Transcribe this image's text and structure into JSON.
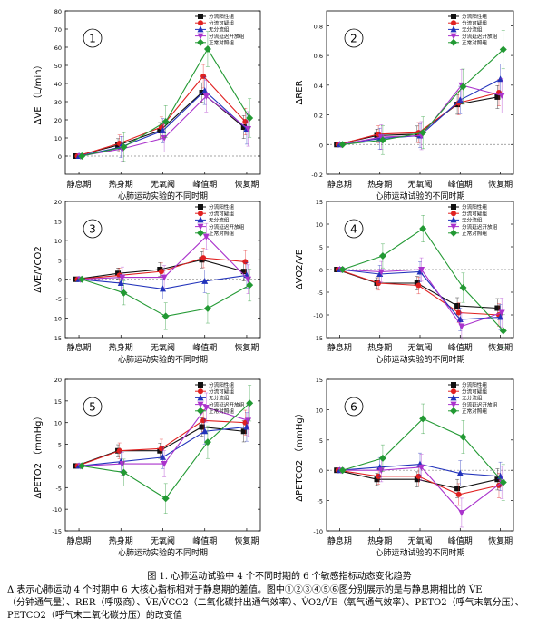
{
  "colors": {
    "series": [
      "#111111",
      "#e02020",
      "#2233bb",
      "#aa33cc",
      "#229933"
    ],
    "zero_line": "#888888"
  },
  "chart_data": [
    {
      "type": "line",
      "number": "1",
      "categories": [
        "静息期",
        "热身期",
        "无氧阈",
        "峰值期",
        "恢复期"
      ],
      "xlabel": "心肺运动实验的不同时期",
      "ylabel": "ΔVE （L/min）",
      "ylim": [
        -10,
        80
      ],
      "yticks": [
        0,
        10,
        20,
        30,
        40,
        50,
        60,
        70,
        80
      ],
      "legend_position": "top-right",
      "series": [
        {
          "name": "分流阳性组",
          "values": [
            0,
            6,
            14,
            35,
            16
          ]
        },
        {
          "name": "分流可疑组",
          "values": [
            0,
            7,
            16,
            44,
            19
          ]
        },
        {
          "name": "无分流组",
          "values": [
            0,
            5,
            14,
            36,
            15
          ]
        },
        {
          "name": "分流延迟开放组",
          "values": [
            0,
            4,
            10,
            33,
            15
          ]
        },
        {
          "name": "正常对照组",
          "values": [
            0,
            5,
            19,
            59,
            21
          ]
        }
      ]
    },
    {
      "type": "line",
      "number": "2",
      "categories": [
        "静息期",
        "热身期",
        "无氧阈",
        "峰值期",
        "恢复期"
      ],
      "xlabel": "心肺运动试验的不同时期",
      "ylabel": "ΔRER",
      "ylim": [
        -0.2,
        0.9
      ],
      "yticks": [
        -0.2,
        0.0,
        0.2,
        0.4,
        0.6,
        0.8
      ],
      "legend_position": "top-right",
      "series": [
        {
          "name": "分流阳性组",
          "values": [
            0,
            0.06,
            0.07,
            0.27,
            0.32
          ]
        },
        {
          "name": "分流可疑组",
          "values": [
            0,
            0.07,
            0.08,
            0.28,
            0.35
          ]
        },
        {
          "name": "无分流组",
          "values": [
            0,
            0.04,
            0.06,
            0.3,
            0.44
          ]
        },
        {
          "name": "分流延迟开放组",
          "values": [
            0,
            0.05,
            0.06,
            0.4,
            0.33
          ]
        },
        {
          "name": "正常对照组",
          "values": [
            0,
            0.03,
            0.08,
            0.39,
            0.64
          ]
        }
      ]
    },
    {
      "type": "line",
      "number": "3",
      "categories": [
        "静息期",
        "热身期",
        "无氧阈",
        "峰值期",
        "恢复期"
      ],
      "xlabel": "心肺运动实验的不同时期",
      "ylabel": "ΔVE/VCO2",
      "ylim": [
        -15,
        20
      ],
      "yticks": [
        -15,
        -10,
        -5,
        0,
        5,
        10,
        15,
        20
      ],
      "legend_position": "top-right",
      "series": [
        {
          "name": "分流阳性组",
          "values": [
            0,
            1.5,
            2.5,
            5,
            2
          ]
        },
        {
          "name": "分流可疑组",
          "values": [
            0,
            1,
            2,
            5.5,
            4.5
          ]
        },
        {
          "name": "无分流组",
          "values": [
            0,
            -1,
            -2.5,
            -0.5,
            1
          ]
        },
        {
          "name": "分流延迟开放组",
          "values": [
            0,
            0.5,
            0.5,
            11,
            0
          ]
        },
        {
          "name": "正常对照组",
          "values": [
            0,
            -3.5,
            -9.5,
            -7.5,
            -1.5
          ]
        }
      ]
    },
    {
      "type": "line",
      "number": "4",
      "categories": [
        "静息期",
        "热身期",
        "无氧阈",
        "峰值期",
        "恢复期"
      ],
      "xlabel": "心肺运动实验的不同时期",
      "ylabel": "ΔVO2/VE",
      "ylim": [
        -15,
        15
      ],
      "yticks": [
        -15,
        -10,
        -5,
        0,
        5,
        10,
        15
      ],
      "legend_position": "top-right",
      "series": [
        {
          "name": "分流阳性组",
          "values": [
            0,
            -3,
            -3,
            -8,
            -8.5
          ]
        },
        {
          "name": "分流可疑组",
          "values": [
            0,
            -3,
            -3.5,
            -9.5,
            -10
          ]
        },
        {
          "name": "无分流组",
          "values": [
            0,
            -1,
            -0.5,
            -11,
            -10.5
          ]
        },
        {
          "name": "分流延迟开放组",
          "values": [
            0,
            -0.5,
            0,
            -12.5,
            -9.5
          ]
        },
        {
          "name": "正常对照组",
          "values": [
            0,
            3,
            9,
            -4,
            -13.5
          ]
        }
      ]
    },
    {
      "type": "line",
      "number": "5",
      "categories": [
        "静息期",
        "热身期",
        "无氧阈",
        "峰值期",
        "恢复期"
      ],
      "xlabel": "心肺运动实验的不同时期",
      "ylabel": "ΔPETO2 （mmHg）",
      "ylim": [
        -15,
        20
      ],
      "yticks": [
        -15,
        -10,
        -5,
        0,
        5,
        10,
        15,
        20
      ],
      "legend_position": "top-right",
      "series": [
        {
          "name": "分流阳性组",
          "values": [
            0,
            3.5,
            3.5,
            9,
            8
          ]
        },
        {
          "name": "分流可疑组",
          "values": [
            0,
            3.5,
            4,
            10.5,
            10
          ]
        },
        {
          "name": "无分流组",
          "values": [
            0,
            1,
            2,
            8,
            9
          ]
        },
        {
          "name": "分流延迟开放组",
          "values": [
            0,
            0.5,
            0.5,
            13.5,
            10.5
          ]
        },
        {
          "name": "正常对照组",
          "values": [
            0,
            -1.5,
            -7.5,
            5.5,
            14.5
          ]
        }
      ]
    },
    {
      "type": "line",
      "number": "6",
      "categories": [
        "静息期",
        "热身期",
        "无氧阈",
        "峰值期",
        "恢复期"
      ],
      "xlabel": "心肺运动试验的不同时期",
      "ylabel": "ΔPETCO2 （mmHg）",
      "ylim": [
        -10,
        15
      ],
      "yticks": [
        -10,
        -5,
        0,
        5,
        10,
        15
      ],
      "legend_position": "top-right",
      "series": [
        {
          "name": "分流阳性组",
          "values": [
            0,
            -1.5,
            -1.5,
            -3,
            -1.5
          ]
        },
        {
          "name": "分流可疑组",
          "values": [
            0,
            -1,
            -1,
            -4,
            -2.5
          ]
        },
        {
          "name": "无分流组",
          "values": [
            0,
            0.5,
            1,
            -0.5,
            -1
          ]
        },
        {
          "name": "分流延迟开放组",
          "values": [
            0,
            0,
            0.5,
            -7,
            -2
          ]
        },
        {
          "name": "正常对照组",
          "values": [
            0,
            2,
            8.5,
            5.5,
            -2
          ]
        }
      ]
    }
  ],
  "caption": {
    "title": "图 1. 心肺运动试验中 4 个不同时期的 6 个敏感指标动态变化趋势",
    "line1": "Δ 表示心肺运动 4 个时期中 6 大核心指标相对于静息期的差值。图中①②③④⑤⑥图分别展示的是与静息期相比的 V̇E",
    "line2": "（分钟通气量）、RER（呼吸商）、V̇E/V̇CO2（二氧化碳排出通气效率）、V̇O2/V̇E（氧气通气效率）、PETO2（呼气末氧分压）、",
    "line3": "PETCO2（呼气末二氧化碳分压）的改变值"
  }
}
